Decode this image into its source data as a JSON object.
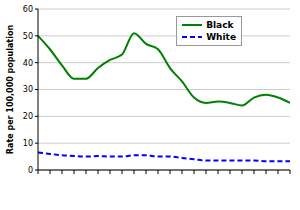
{
  "chart_data": {
    "type": "line",
    "y_label": "Rate per 100,000 population",
    "categories": [
      null,
      null,
      null,
      null,
      null,
      null,
      null,
      null,
      null,
      null,
      null,
      null,
      null,
      null,
      null,
      null,
      null,
      null,
      null,
      null,
      null,
      null
    ],
    "series": [
      {
        "name": "Black",
        "color": "#008000",
        "line_style": "solid",
        "values": [
          50,
          45,
          39,
          34,
          34,
          38,
          41,
          43,
          51,
          47,
          45,
          38,
          33,
          27,
          25,
          25.5,
          25,
          24,
          27,
          28,
          27,
          25
        ]
      },
      {
        "name": "White",
        "color": "#0000ff",
        "line_style": "dashed",
        "values": [
          6.5,
          6,
          5.5,
          5.2,
          5,
          5.2,
          5,
          5,
          5.5,
          5.5,
          5,
          5,
          4.5,
          4,
          3.5,
          3.5,
          3.5,
          3.5,
          3.5,
          3.3,
          3.3,
          3.3
        ]
      }
    ],
    "ylim": [
      0,
      60
    ],
    "yticks": [
      0,
      10,
      20,
      30,
      40,
      50,
      60
    ],
    "grid": true,
    "legend": "upper right",
    "tick_labels": "y"
  }
}
